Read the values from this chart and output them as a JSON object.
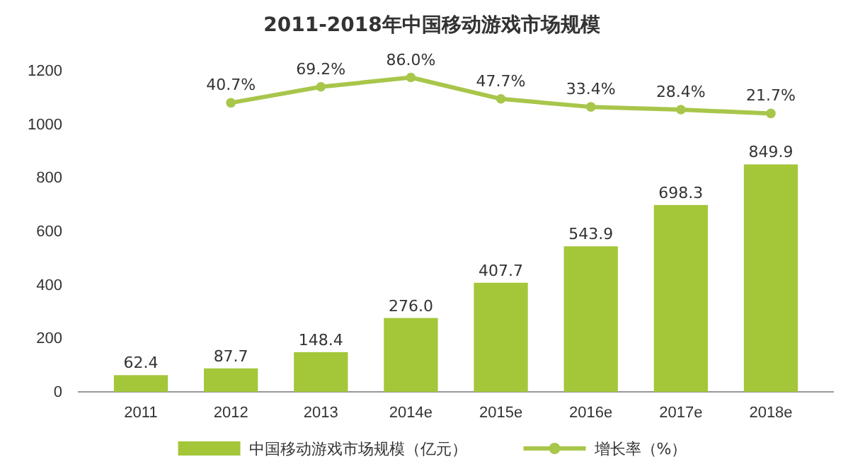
{
  "chart_data": {
    "type": "bar",
    "title": "2011-2018年中国移动游戏市场规模",
    "categories": [
      "2011",
      "2012",
      "2013",
      "2014e",
      "2015e",
      "2016e",
      "2017e",
      "2018e"
    ],
    "series": [
      {
        "name": "中国移动游戏市场规模（亿元）",
        "color": "#a4c639",
        "values": [
          62.4,
          87.7,
          148.4,
          276.0,
          407.7,
          543.9,
          698.3,
          849.9
        ],
        "value_labels": [
          "62.4",
          "87.7",
          "148.4",
          "276.0",
          "407.7",
          "543.9",
          "698.3",
          "849.9"
        ]
      },
      {
        "name": "增长率（%）",
        "type": "line",
        "axis": "y2",
        "color": "#a8c64a",
        "marker": "circle",
        "values": [
          null,
          40.7,
          69.2,
          86.0,
          47.7,
          33.4,
          28.4,
          21.7
        ],
        "value_labels": [
          null,
          "40.7%",
          "69.2%",
          "86.0%",
          "47.7%",
          "33.4%",
          "28.4%",
          "21.7%"
        ]
      }
    ],
    "ylim": [
      0,
      1200
    ],
    "yticks": [
      0,
      200,
      400,
      600,
      800,
      1000,
      1200
    ],
    "tick_labels": "xy",
    "grid": false,
    "legend": "bottom"
  }
}
